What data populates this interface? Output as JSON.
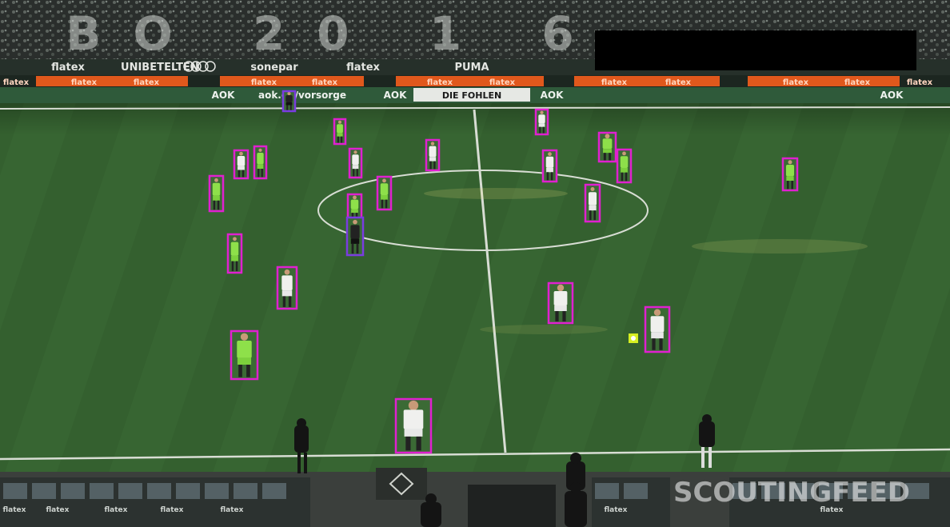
{
  "scene": {
    "type": "football broadcast frame with player detection boxes",
    "colors": {
      "pitch_light": "#3a6a35",
      "pitch_dark": "#2b5529",
      "line": "#e8ece6",
      "box_player": "#e020d0",
      "box_referee": "#7a3ce0",
      "box_ball": "#e8ff20",
      "kit_home": "#f0f0ee",
      "kit_away": "#8ee04a",
      "kit_ref": "#222222",
      "board_orange": "#e0581c",
      "board_green": "#2f5a3a"
    }
  },
  "stand_numbers": "BO 20 1 6",
  "boards": {
    "upper": [
      "flatex",
      "UNIBET",
      "ELTEN",
      "sonepar",
      "flatex",
      "PUMA"
    ],
    "mid": [
      "flatex",
      "flatex",
      "flatex",
      "flatex",
      "flatex",
      "flatex",
      "flatex",
      "flatex",
      "flatex",
      "flatex",
      "flatex",
      "flatex"
    ],
    "lower": [
      "AOK",
      "aok.de/vorsorge",
      "AOK",
      "DIE FOHLEN",
      "AOK",
      "AOK"
    ]
  },
  "bench_boards": [
    "flatex",
    "flatex",
    "flatex",
    "flatex",
    "flatex",
    "flatex",
    "flatex"
  ],
  "watermark": "SCOUTINGFEED",
  "detections": [
    {
      "kind": "player",
      "kit": "away"
    },
    {
      "kind": "player",
      "kit": "home"
    },
    {
      "kind": "player",
      "kit": "away"
    },
    {
      "kind": "player",
      "kit": "away"
    },
    {
      "kind": "player",
      "kit": "home"
    },
    {
      "kind": "player",
      "kit": "away"
    },
    {
      "kind": "player",
      "kit": "home"
    },
    {
      "kind": "player",
      "kit": "away"
    },
    {
      "kind": "referee",
      "kit": "ref"
    },
    {
      "kind": "player",
      "kit": "away"
    },
    {
      "kind": "player",
      "kit": "home"
    },
    {
      "kind": "player",
      "kit": "away"
    },
    {
      "kind": "player",
      "kit": "home"
    },
    {
      "kind": "player",
      "kit": "home"
    },
    {
      "kind": "player",
      "kit": "home"
    },
    {
      "kind": "player",
      "kit": "away"
    },
    {
      "kind": "player",
      "kit": "away"
    },
    {
      "kind": "player",
      "kit": "home"
    },
    {
      "kind": "player",
      "kit": "away"
    },
    {
      "kind": "player",
      "kit": "home"
    },
    {
      "kind": "player",
      "kit": "home"
    },
    {
      "kind": "referee",
      "kit": "ref"
    },
    {
      "kind": "ball",
      "kit": "ball"
    }
  ]
}
